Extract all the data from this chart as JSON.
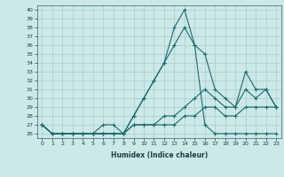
{
  "title": "",
  "xlabel": "Humidex (Indice chaleur)",
  "xlim": [
    -0.5,
    23.5
  ],
  "ylim": [
    25.5,
    40.5
  ],
  "yticks": [
    26,
    27,
    28,
    29,
    30,
    31,
    32,
    33,
    34,
    35,
    36,
    37,
    38,
    39,
    40
  ],
  "xticks": [
    0,
    1,
    2,
    3,
    4,
    5,
    6,
    7,
    8,
    9,
    10,
    11,
    12,
    13,
    14,
    15,
    16,
    17,
    18,
    19,
    20,
    21,
    22,
    23
  ],
  "background_color": "#cce8e8",
  "grid_color": "#aacccc",
  "line_color": "#1a6b6b",
  "series": [
    [
      27,
      26,
      26,
      26,
      26,
      26,
      26,
      26,
      26,
      28,
      30,
      32,
      34,
      36,
      38,
      36,
      35,
      31,
      30,
      29,
      33,
      31,
      31,
      29
    ],
    [
      27,
      26,
      26,
      26,
      26,
      26,
      26,
      26,
      26,
      28,
      30,
      32,
      34,
      38,
      40,
      36,
      27,
      26,
      26,
      26,
      26,
      26,
      26,
      26
    ],
    [
      27,
      26,
      26,
      26,
      26,
      26,
      27,
      27,
      26,
      27,
      27,
      27,
      28,
      28,
      29,
      30,
      31,
      30,
      29,
      29,
      31,
      30,
      31,
      29
    ],
    [
      27,
      26,
      26,
      26,
      26,
      26,
      26,
      26,
      26,
      27,
      27,
      27,
      27,
      27,
      28,
      28,
      29,
      29,
      28,
      28,
      29,
      29,
      29,
      29
    ]
  ]
}
